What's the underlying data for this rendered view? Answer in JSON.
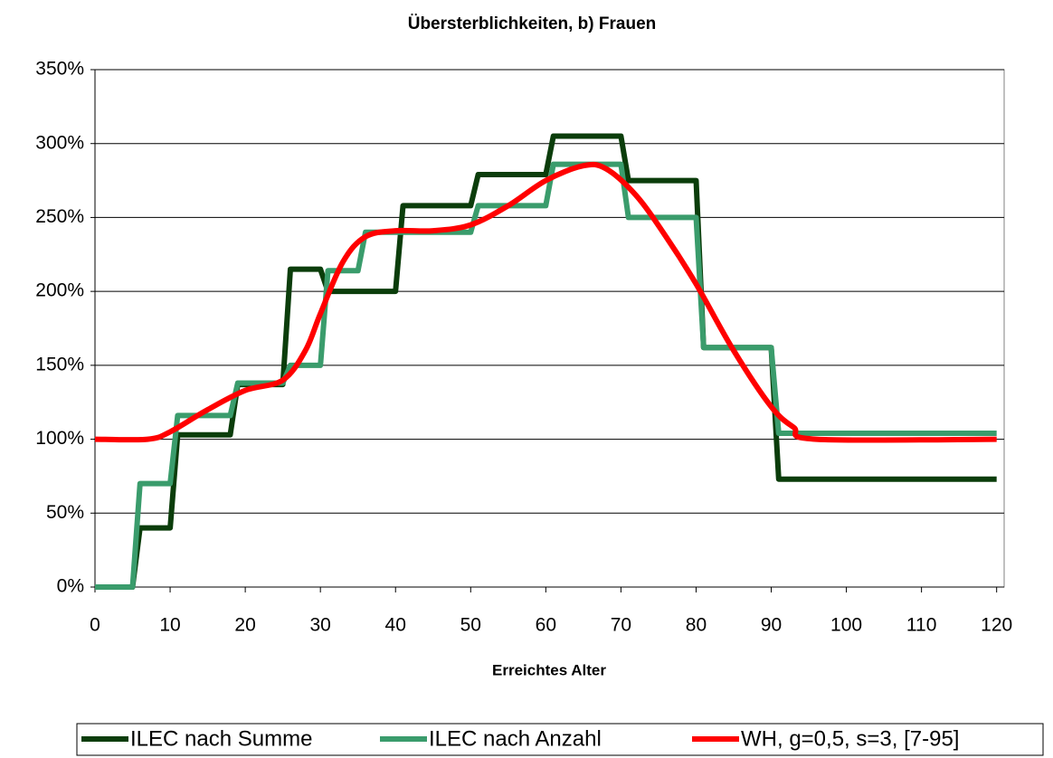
{
  "chart_data": {
    "type": "line",
    "title": "Übersterblichkeiten, b) Frauen",
    "x_label": "Erreichtes Alter",
    "xlim": [
      0,
      121
    ],
    "xticks": [
      0,
      10,
      20,
      30,
      40,
      50,
      60,
      70,
      80,
      90,
      100,
      110,
      120
    ],
    "ylim": [
      0,
      350
    ],
    "yticks": [
      {
        "value": 0,
        "label": "0%"
      },
      {
        "value": 50,
        "label": "50%"
      },
      {
        "value": 100,
        "label": "100%"
      },
      {
        "value": 150,
        "label": "150%"
      },
      {
        "value": 200,
        "label": "200%"
      },
      {
        "value": 250,
        "label": "250%"
      },
      {
        "value": 300,
        "label": "300%"
      },
      {
        "value": 350,
        "label": "350%"
      }
    ],
    "grid": true,
    "legend": "bottom",
    "series": [
      {
        "name": "ILEC nach Summe",
        "color": "#0b3d0b",
        "smooth": false,
        "x": [
          0,
          5,
          6,
          10,
          11,
          18,
          19,
          25,
          26,
          30,
          31,
          40,
          41,
          50,
          51,
          60,
          61,
          70,
          71,
          80,
          81,
          90,
          91,
          120
        ],
        "values": [
          0,
          0,
          40,
          40,
          103,
          103,
          137,
          137,
          215,
          215,
          200,
          200,
          258,
          258,
          279,
          279,
          305,
          305,
          275,
          275,
          162,
          162,
          73,
          73
        ]
      },
      {
        "name": "ILEC nach Anzahl",
        "color": "#3a9c6c",
        "smooth": false,
        "x": [
          0,
          5,
          6,
          10,
          11,
          18,
          19,
          25,
          26,
          30,
          31,
          35,
          36,
          50,
          51,
          60,
          61,
          70,
          71,
          80,
          81,
          90,
          91,
          120
        ],
        "values": [
          0,
          0,
          70,
          70,
          116,
          116,
          138,
          138,
          150,
          150,
          214,
          214,
          240,
          240,
          258,
          258,
          286,
          286,
          250,
          250,
          162,
          162,
          104,
          104
        ]
      },
      {
        "name": "WH, g=0,5, s=3, [7-95]",
        "color": "#ff0000",
        "smooth": true,
        "x": [
          0,
          7,
          10,
          15,
          20,
          25,
          28,
          30,
          33,
          36,
          40,
          45,
          50,
          55,
          60,
          65,
          68,
          72,
          76,
          80,
          85,
          90,
          93,
          96,
          120
        ],
        "values": [
          100,
          100,
          105,
          120,
          133,
          140,
          160,
          185,
          220,
          237,
          241,
          241,
          245,
          258,
          275,
          285,
          283,
          265,
          237,
          205,
          160,
          122,
          108,
          100,
          100
        ]
      }
    ]
  }
}
